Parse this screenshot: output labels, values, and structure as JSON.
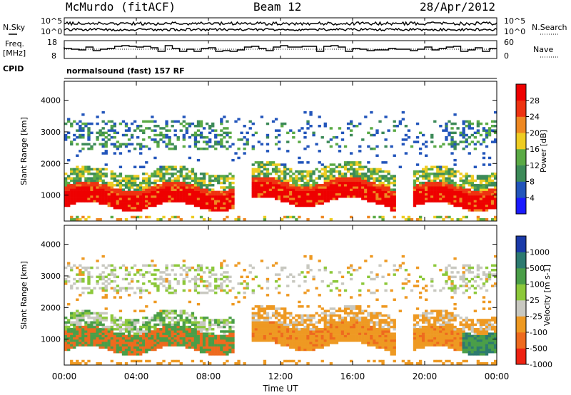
{
  "header": {
    "station": "McMurdo (fitACF)",
    "beam": "Beam 12",
    "date": "28/Apr/2012"
  },
  "top_panel": {
    "nsky_label": "N.Sky",
    "nsearch_label": "N.Search",
    "freq_label_1": "Freq.",
    "freq_label_2": "[MHz]",
    "nave_label": "Nave",
    "cpid_label": "CPID",
    "cpid_text": "normalsound (fast) 157 RF",
    "noise_ticks_left": [
      "10^5",
      "10^0"
    ],
    "noise_ticks_right": [
      "10^5",
      "10^0"
    ],
    "freq_ticks": [
      "18",
      "8"
    ],
    "nave_ticks": [
      "60",
      "0"
    ]
  },
  "power_panel": {
    "ylabel": "Slant Range [km]",
    "yticks": [
      "1000",
      "2000",
      "3000",
      "4000"
    ],
    "colorbar_label": "Power [dB]",
    "colorbar_ticks": [
      "4",
      "8",
      "12",
      "16",
      "20",
      "24",
      "28"
    ],
    "colors": [
      "#1a1aff",
      "#2255bb",
      "#3c8a58",
      "#5aaa45",
      "#eecc22",
      "#ee8822",
      "#ee3311",
      "#ee0000"
    ]
  },
  "velocity_panel": {
    "ylabel": "Slant Range [km]",
    "yticks": [
      "1000",
      "2000",
      "3000",
      "4000"
    ],
    "colorbar_label": "Velocity [m s-1]",
    "colorbar_ticks": [
      "1000",
      "500",
      "100",
      "25",
      "-25",
      "-100",
      "-500",
      "-1000"
    ],
    "colors": [
      "#1a3aa8",
      "#2c7a70",
      "#4a9e48",
      "#8cc83a",
      "#c8c8c0",
      "#ee9922",
      "#ee6a1e",
      "#ee2211"
    ]
  },
  "xaxis": {
    "ticks": [
      "00:00",
      "04:00",
      "08:00",
      "12:00",
      "16:00",
      "20:00",
      "00:00"
    ],
    "label": "Time UT"
  },
  "chart_data": [
    {
      "type": "heatmap",
      "title": "Power",
      "xlabel": "Time UT",
      "ylabel": "Slant Range [km]",
      "x_range_hours": [
        0,
        24
      ],
      "ylim": [
        180,
        4600
      ],
      "colorbar": {
        "label": "Power [dB]",
        "ticks": [
          4,
          8,
          12,
          16,
          20,
          24,
          28
        ]
      },
      "bands": [
        {
          "x0": 0,
          "x1": 24,
          "y0": 700,
          "y1": 1300,
          "level": 28
        },
        {
          "x0": 0,
          "x1": 24,
          "y0": 1300,
          "y1": 1800,
          "level": 12
        },
        {
          "x0": 0,
          "x1": 24,
          "y0": 2400,
          "y1": 3200,
          "level": 8
        }
      ]
    },
    {
      "type": "heatmap",
      "title": "Velocity",
      "xlabel": "Time UT",
      "ylabel": "Slant Range [km]",
      "x_range_hours": [
        0,
        24
      ],
      "ylim": [
        180,
        4600
      ],
      "colorbar": {
        "label": "Velocity [m s-1]",
        "ticks": [
          1000,
          500,
          100,
          25,
          -25,
          -100,
          -500,
          -1000
        ]
      },
      "bands": [
        {
          "x0": 0,
          "x1": 24,
          "y0": 700,
          "y1": 1400,
          "level": -100
        },
        {
          "x0": 0,
          "x1": 12,
          "y0": 1400,
          "y1": 1800,
          "level": 100
        },
        {
          "x0": 0,
          "x1": 24,
          "y0": 2400,
          "y1": 3200,
          "level": 25
        }
      ]
    }
  ]
}
